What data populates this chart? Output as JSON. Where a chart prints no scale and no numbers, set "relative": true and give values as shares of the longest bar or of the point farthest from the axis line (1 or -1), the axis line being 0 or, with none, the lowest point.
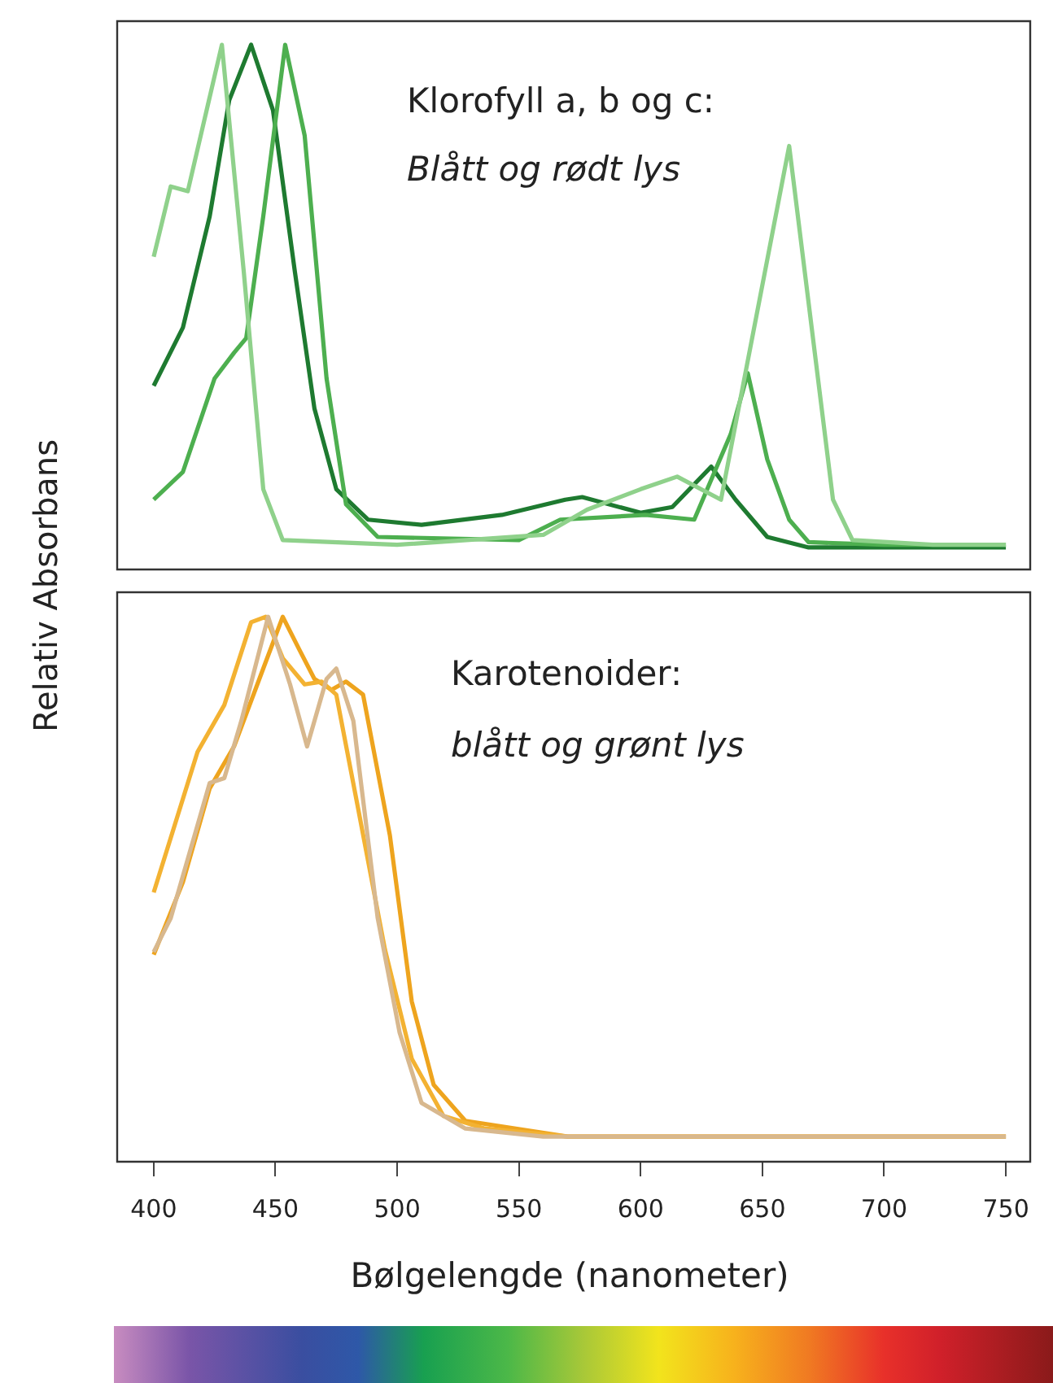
{
  "chart_data": [
    {
      "type": "line",
      "relative": true,
      "ylabel": "Relativ Absorbans",
      "annotations": [
        "Klorofyll a, b og c:",
        "Blått og rødt lys"
      ],
      "xlim": [
        385,
        760
      ],
      "tick_labels": false,
      "series": [
        {
          "color": "#8fd18b",
          "x": [
            400,
            407,
            414,
            428,
            437,
            445,
            453,
            500,
            560,
            578,
            600,
            615,
            633,
            661,
            679,
            687,
            720,
            750
          ],
          "values": [
            0.596,
            0.73,
            0.721,
            1.0,
            0.567,
            0.153,
            0.056,
            0.047,
            0.066,
            0.114,
            0.153,
            0.177,
            0.133,
            0.807,
            0.133,
            0.056,
            0.047,
            0.047
          ]
        },
        {
          "color": "#4daf4f",
          "x": [
            400,
            412,
            425,
            433,
            438,
            445,
            454,
            462,
            471,
            479,
            492,
            550,
            567,
            602,
            622,
            637,
            644,
            652,
            661,
            669,
            700,
            750
          ],
          "values": [
            0.133,
            0.186,
            0.364,
            0.413,
            0.441,
            0.673,
            1.0,
            0.827,
            0.364,
            0.124,
            0.062,
            0.056,
            0.095,
            0.104,
            0.095,
            0.258,
            0.374,
            0.21,
            0.095,
            0.052,
            0.047,
            0.047
          ]
        },
        {
          "color": "#1e7a30",
          "x": [
            400,
            412,
            423,
            431,
            440,
            449,
            458,
            466,
            475,
            488,
            510,
            543,
            569,
            576,
            600,
            613,
            629,
            639,
            652,
            669,
            700,
            750
          ],
          "values": [
            0.35,
            0.461,
            0.673,
            0.894,
            1.0,
            0.875,
            0.567,
            0.307,
            0.153,
            0.095,
            0.085,
            0.104,
            0.133,
            0.138,
            0.108,
            0.119,
            0.196,
            0.133,
            0.062,
            0.042,
            0.042,
            0.042
          ]
        }
      ]
    },
    {
      "type": "line",
      "relative": true,
      "xlabel": "Bølgelengde (nanometer)",
      "annotations": [
        "Karotenoider:",
        "blått og grønt lys"
      ],
      "xlim": [
        385,
        760
      ],
      "xticks": [
        400,
        450,
        500,
        550,
        600,
        650,
        700,
        750
      ],
      "series": [
        {
          "color": "#d8b88e",
          "x": [
            400,
            407,
            423,
            429,
            436,
            447,
            456,
            463,
            471,
            475,
            482,
            492,
            501,
            510,
            528,
            560,
            750
          ],
          "values": [
            0.385,
            0.447,
            0.695,
            0.704,
            0.809,
            1.0,
            0.876,
            0.762,
            0.886,
            0.905,
            0.809,
            0.447,
            0.237,
            0.108,
            0.061,
            0.046,
            0.046
          ]
        },
        {
          "color": "#f3b232",
          "x": [
            400,
            418,
            429,
            440,
            446,
            453,
            462,
            469,
            475,
            484,
            495,
            506,
            519,
            536,
            570,
            750
          ],
          "values": [
            0.494,
            0.752,
            0.838,
            0.99,
            1.0,
            0.924,
            0.876,
            0.881,
            0.857,
            0.647,
            0.389,
            0.189,
            0.084,
            0.061,
            0.046,
            0.046
          ]
        },
        {
          "color": "#eea41e",
          "x": [
            400,
            412,
            423,
            433,
            445,
            453,
            460,
            466,
            473,
            479,
            486,
            497,
            506,
            515,
            528,
            570,
            750
          ],
          "values": [
            0.38,
            0.513,
            0.685,
            0.762,
            0.905,
            1.0,
            0.938,
            0.886,
            0.866,
            0.881,
            0.857,
            0.599,
            0.294,
            0.141,
            0.075,
            0.046,
            0.046
          ]
        }
      ]
    }
  ]
}
